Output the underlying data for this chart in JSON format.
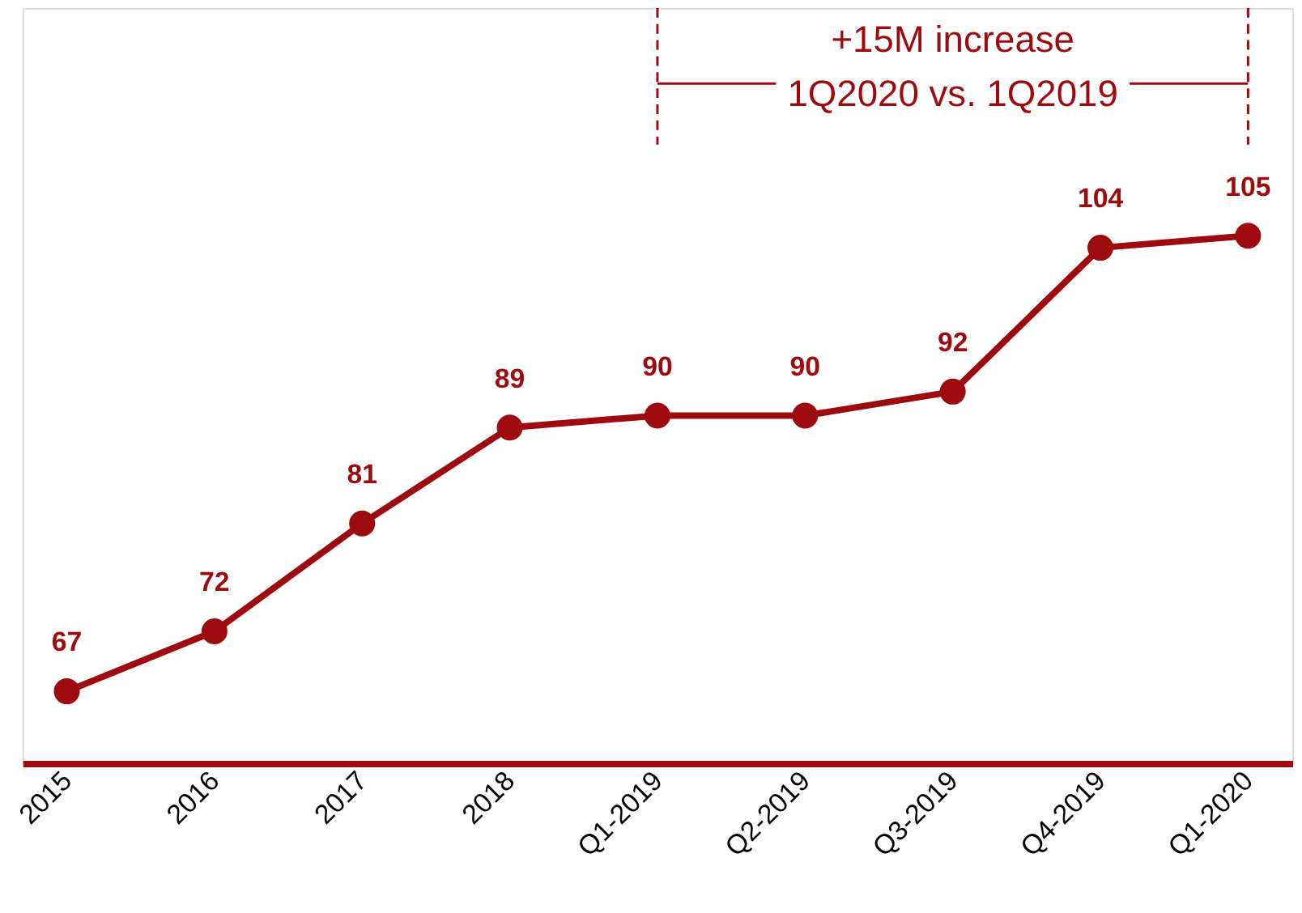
{
  "chart_data": {
    "type": "line",
    "categories": [
      "2015",
      "2016",
      "2017",
      "2018",
      "Q1-2019",
      "Q2-2019",
      "Q3-2019",
      "Q4-2019",
      "Q1-2020"
    ],
    "series": [
      {
        "color": "#9e0b0f",
        "values": [
          67,
          72,
          81,
          89,
          90,
          90,
          92,
          104,
          105
        ]
      }
    ],
    "ylim": [
      61,
      124
    ],
    "data_labels": true,
    "marker": "circle",
    "line_style": "solid",
    "grid": false,
    "tick_labels": "x",
    "ref_lines": [
      {
        "axis": "x",
        "value": "Q1-2019",
        "color": "#9e0b0f",
        "line_style": "dashed"
      },
      {
        "axis": "x",
        "value": "Q1-2020",
        "color": "#9e0b0f",
        "line_style": "dashed"
      }
    ],
    "annotations": [
      "+15M increase",
      "1Q2020 vs. 1Q2019"
    ]
  }
}
